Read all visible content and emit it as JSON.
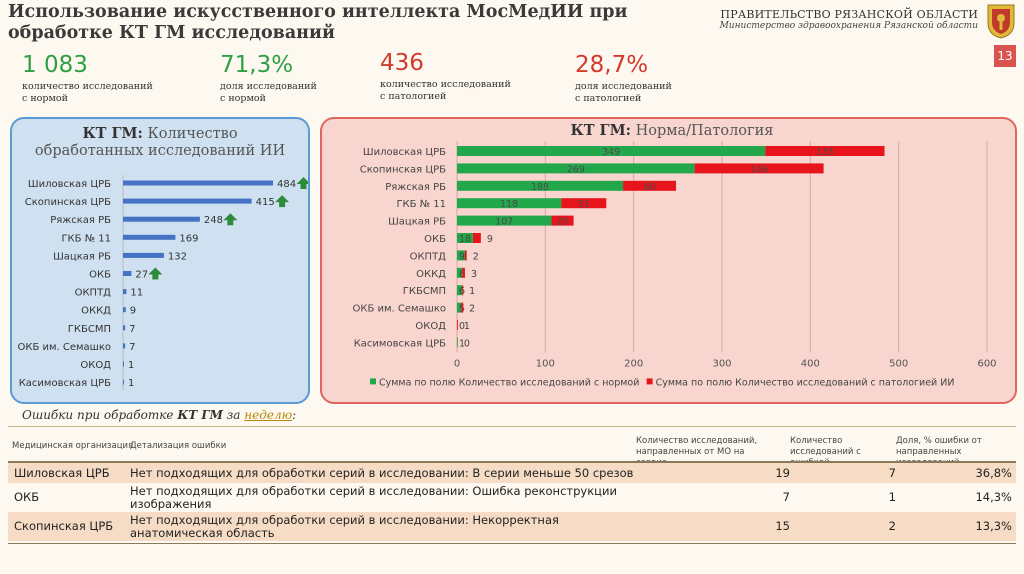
{
  "header": {
    "title": "Использование искусственного интеллекта МосМедИИ при обработке КТ ГМ исследований",
    "gov_name": "ПРАВИТЕЛЬСТВО РЯЗАНСКОЙ ОБЛАСТИ",
    "gov_sub": "Министерство здравоохранения Рязанской области",
    "page_number": "13",
    "colors": {
      "green": "#2ea043",
      "red": "#d23a2e",
      "page_badge": "#d9534f"
    }
  },
  "stats": [
    {
      "value": "1 083",
      "desc1": "количество исследований",
      "desc2": "с нормой",
      "color": "green"
    },
    {
      "value": "71,3%",
      "desc1": "доля исследований",
      "desc2": "с нормой",
      "color": "green"
    },
    {
      "value": "436",
      "desc1": "количество исследований",
      "desc2": "с патологией",
      "color": "red"
    },
    {
      "value": "28,7%",
      "desc1": "доля исследований",
      "desc2": "с патологией",
      "color": "red"
    }
  ],
  "left_chart_title": {
    "bold": "КТ ГМ:",
    "rest": " Количество обработанных исследований ИИ"
  },
  "right_chart_title": {
    "bold": "КТ ГМ:",
    "rest": " Норма/Патология"
  },
  "chart_data": [
    {
      "type": "bar",
      "orientation": "horizontal",
      "title": "КТ ГМ: Количество обработанных исследований ИИ",
      "categories": [
        "Шиловская ЦРБ",
        "Скопинская ЦРБ",
        "Ряжская РБ",
        "ГКБ № 11",
        "Шацкая РБ",
        "ОКБ",
        "ОКПТД",
        "ОККД",
        "ГКБСМП",
        "ОКБ им. Семашко",
        "ОКОД",
        "Касимовская ЦРБ"
      ],
      "values": [
        484,
        415,
        248,
        169,
        132,
        27,
        11,
        9,
        7,
        7,
        1,
        1
      ],
      "trend_up": [
        true,
        true,
        true,
        false,
        false,
        true,
        false,
        false,
        false,
        false,
        false,
        false
      ],
      "bar_color": "#4472c4",
      "arrow_color": "#2e8b3a"
    },
    {
      "type": "bar",
      "orientation": "horizontal",
      "stacked": true,
      "title": "КТ ГМ: Норма/Патология",
      "categories": [
        "Шиловская ЦРБ",
        "Скопинская ЦРБ",
        "Ряжская РБ",
        "ГКБ № 11",
        "Шацкая РБ",
        "ОКБ",
        "ОКПТД",
        "ОККД",
        "ГКБСМП",
        "ОКБ им. Семашко",
        "ОКОД",
        "Касимовская ЦРБ"
      ],
      "series": [
        {
          "name": "Сумма по полю Количество исследований с нормой",
          "color": "#22a84a",
          "values": [
            349,
            269,
            188,
            118,
            107,
            18,
            9,
            6,
            6,
            5,
            0,
            1
          ]
        },
        {
          "name": "Сумма по полю Количество исследований с патологией ИИ",
          "color": "#e8141b",
          "values": [
            135,
            146,
            60,
            51,
            25,
            9,
            2,
            3,
            1,
            2,
            1,
            0
          ]
        }
      ],
      "xlim": [
        0,
        600
      ],
      "xticks": [
        0,
        100,
        200,
        300,
        400,
        500,
        600
      ],
      "legend": "bottom"
    }
  ],
  "errors": {
    "title_prefix": "Ошибки при обработке ",
    "title_bold": "КТ ГМ",
    "title_mid": " за ",
    "title_link": "неделю",
    "title_suffix": ":",
    "headers": {
      "org": "Медицинская организация",
      "detail": "Детализация ошибки",
      "sent": "Количество исследований, направленных от МО на сервис",
      "err": "Количество исследований с ошибкой",
      "share": "Доля, % ошибки от направленных исследований"
    },
    "rows": [
      {
        "org": "Шиловская ЦРБ",
        "detail": "Нет подходящих для обработки серий в исследовании: В серии меньше 50 срезов",
        "sent": "19",
        "err": "7",
        "share": "36,8%"
      },
      {
        "org": "ОКБ",
        "detail": "Нет подходящих для обработки серий в исследовании: Ошибка реконструкции изображения",
        "sent": "7",
        "err": "1",
        "share": "14,3%"
      },
      {
        "org": "Скопинская ЦРБ",
        "detail": "Нет подходящих для обработки серий в исследовании: Некорректная анатомическая область",
        "sent": "15",
        "err": "2",
        "share": "13,3%"
      }
    ]
  }
}
